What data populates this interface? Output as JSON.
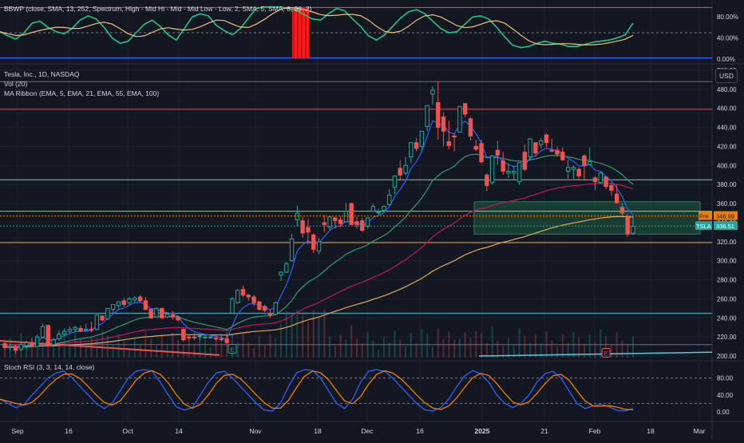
{
  "colors": {
    "background": "#131722",
    "up": "#26a69a",
    "down": "#ef5350",
    "grid": "#1f2330",
    "text": "#d1d4dc",
    "ema5": "#2962ff",
    "ema21": "#2e9e72",
    "ema55": "#c2185b",
    "ema100": "#e0a75e",
    "bbwp": "#26c281",
    "bbwp_ma": "#f6c177",
    "stoch_k": "#2962ff",
    "stoch_d": "#f57c00",
    "box": "#1d5b3f"
  },
  "bbwp_panel": {
    "title": "BBWP (close, SMA, 13, 252, Spectrum, High - Mid Hi - Mid - Mid Low - Low, 2, SMA, 5, SMA, 8, 98, 2)",
    "ticks": [
      "80.00%",
      "40.00%",
      "0.00%"
    ]
  },
  "price_panel": {
    "title": "Tesla, Inc., 1D, NASDAQ",
    "vol_label": "Vol (20)",
    "ribbon_label": "MA Ribbon (EMA, 5, EMA, 21, EMA, 55, EMA, 100)",
    "currency_button": "USD",
    "pre_tag": "Pre",
    "pre_value": "346.99",
    "symbol_tag": "TSLA",
    "last_value": "336.51",
    "earnings_icon": "E",
    "y_ticks": [
      "500.00",
      "480.00",
      "460.00",
      "440.00",
      "420.00",
      "400.00",
      "380.00",
      "360.00",
      "340.00",
      "320.00",
      "300.00",
      "280.00",
      "260.00",
      "240.00",
      "220.00",
      "200.00"
    ]
  },
  "stoch_panel": {
    "title": "Stoch RSI (3, 3, 14, 14, close)",
    "ticks": [
      "80.00",
      "40.00",
      "0.00"
    ]
  },
  "x_axis": {
    "labels": [
      "Sep",
      "16",
      "Oct",
      "14",
      "Nov",
      "18",
      "Dec",
      "16",
      "2025",
      "21",
      "Feb",
      "18",
      "Mar"
    ]
  },
  "chart_data": {
    "type": "candlestick",
    "title": "Tesla, Inc., 1D, NASDAQ",
    "ylim": [
      195,
      505
    ],
    "horizontal_levels": [
      {
        "value": 488,
        "color": "#787b86"
      },
      {
        "value": 459,
        "color": "#ef5350"
      },
      {
        "value": 385,
        "color": "#a5d6a7"
      },
      {
        "value": 352,
        "color": "#a5d6a7"
      },
      {
        "value": 319,
        "color": "#ffb74d"
      },
      {
        "value": 245,
        "color": "#4dd0e1"
      },
      {
        "value": 212,
        "color": "#787b86"
      }
    ],
    "zone": {
      "from": 328,
      "to": 362,
      "color": "#1d5b3f"
    },
    "pre_market": 346.99,
    "last": 336.51,
    "candles": [
      {
        "date": "Aug 26",
        "o": 213,
        "h": 215,
        "l": 207,
        "c": 209
      },
      {
        "date": "Aug 27",
        "o": 209,
        "h": 213,
        "l": 206,
        "c": 210
      },
      {
        "date": "Aug 28",
        "o": 210,
        "h": 212,
        "l": 203,
        "c": 206
      },
      {
        "date": "Aug 29",
        "o": 207,
        "h": 214,
        "l": 205,
        "c": 212
      },
      {
        "date": "Aug 30",
        "o": 211,
        "h": 216,
        "l": 208,
        "c": 214
      },
      {
        "date": "Sep 3",
        "o": 214,
        "h": 219,
        "l": 209,
        "c": 211
      },
      {
        "date": "Sep 4",
        "o": 210,
        "h": 222,
        "l": 210,
        "c": 220
      },
      {
        "date": "Sep 5",
        "o": 220,
        "h": 234,
        "l": 219,
        "c": 231
      },
      {
        "date": "Sep 6",
        "o": 232,
        "h": 233,
        "l": 210,
        "c": 211
      },
      {
        "date": "Sep 9",
        "o": 212,
        "h": 219,
        "l": 211,
        "c": 217
      },
      {
        "date": "Sep 10",
        "o": 218,
        "h": 227,
        "l": 216,
        "c": 223
      },
      {
        "date": "Sep 11",
        "o": 223,
        "h": 229,
        "l": 221,
        "c": 226
      },
      {
        "date": "Sep 12",
        "o": 226,
        "h": 231,
        "l": 224,
        "c": 228
      },
      {
        "date": "Sep 13",
        "o": 228,
        "h": 232,
        "l": 225,
        "c": 230
      },
      {
        "date": "Sep 16",
        "o": 229,
        "h": 232,
        "l": 226,
        "c": 226
      },
      {
        "date": "Sep 17",
        "o": 227,
        "h": 234,
        "l": 225,
        "c": 228
      },
      {
        "date": "Sep 18",
        "o": 228,
        "h": 236,
        "l": 225,
        "c": 227
      },
      {
        "date": "Sep 19",
        "o": 228,
        "h": 244,
        "l": 227,
        "c": 243
      },
      {
        "date": "Sep 20",
        "o": 242,
        "h": 243,
        "l": 236,
        "c": 238
      },
      {
        "date": "Sep 23",
        "o": 239,
        "h": 250,
        "l": 238,
        "c": 250
      },
      {
        "date": "Sep 24",
        "o": 249,
        "h": 254,
        "l": 244,
        "c": 254
      },
      {
        "date": "Sep 25",
        "o": 253,
        "h": 257,
        "l": 249,
        "c": 257
      },
      {
        "date": "Sep 26",
        "o": 258,
        "h": 261,
        "l": 252,
        "c": 254
      },
      {
        "date": "Sep 27",
        "o": 256,
        "h": 262,
        "l": 254,
        "c": 260
      },
      {
        "date": "Sep 30",
        "o": 259,
        "h": 263,
        "l": 256,
        "c": 261
      },
      {
        "date": "Oct 1",
        "o": 262,
        "h": 264,
        "l": 256,
        "c": 258
      },
      {
        "date": "Oct 2",
        "o": 258,
        "h": 262,
        "l": 248,
        "c": 249
      },
      {
        "date": "Oct 3",
        "o": 249,
        "h": 250,
        "l": 239,
        "c": 240
      },
      {
        "date": "Oct 4",
        "o": 241,
        "h": 251,
        "l": 240,
        "c": 250
      },
      {
        "date": "Oct 7",
        "o": 250,
        "h": 250,
        "l": 239,
        "c": 240
      },
      {
        "date": "Oct 8",
        "o": 241,
        "h": 246,
        "l": 240,
        "c": 244
      },
      {
        "date": "Oct 9",
        "o": 243,
        "h": 247,
        "l": 238,
        "c": 241
      },
      {
        "date": "Oct 10",
        "o": 241,
        "h": 242,
        "l": 236,
        "c": 238
      },
      {
        "date": "Oct 11",
        "o": 228,
        "h": 229,
        "l": 215,
        "c": 217
      },
      {
        "date": "Oct 14",
        "o": 220,
        "h": 222,
        "l": 217,
        "c": 219
      },
      {
        "date": "Oct 15",
        "o": 220,
        "h": 224,
        "l": 217,
        "c": 219
      },
      {
        "date": "Oct 16",
        "o": 221,
        "h": 222,
        "l": 217,
        "c": 221
      },
      {
        "date": "Oct 17",
        "o": 220,
        "h": 222,
        "l": 218,
        "c": 220
      },
      {
        "date": "Oct 18",
        "o": 220,
        "h": 222,
        "l": 218,
        "c": 220
      },
      {
        "date": "Oct 21",
        "o": 219,
        "h": 220,
        "l": 216,
        "c": 218
      },
      {
        "date": "Oct 22",
        "o": 218,
        "h": 223,
        "l": 215,
        "c": 217
      },
      {
        "date": "Oct 23",
        "o": 218,
        "h": 223,
        "l": 212,
        "c": 214
      },
      {
        "date": "Oct 24",
        "o": 245,
        "h": 262,
        "l": 244,
        "c": 260
      },
      {
        "date": "Oct 25",
        "o": 256,
        "h": 270,
        "l": 255,
        "c": 269
      },
      {
        "date": "Oct 28",
        "o": 270,
        "h": 274,
        "l": 262,
        "c": 264
      },
      {
        "date": "Oct 29",
        "o": 264,
        "h": 265,
        "l": 258,
        "c": 262
      },
      {
        "date": "Oct 30",
        "o": 262,
        "h": 264,
        "l": 253,
        "c": 256
      },
      {
        "date": "Oct 31",
        "o": 257,
        "h": 258,
        "l": 248,
        "c": 249
      },
      {
        "date": "Nov 1",
        "o": 252,
        "h": 254,
        "l": 246,
        "c": 248
      },
      {
        "date": "Nov 4",
        "o": 244,
        "h": 248,
        "l": 240,
        "c": 243
      },
      {
        "date": "Nov 5",
        "o": 244,
        "h": 257,
        "l": 243,
        "c": 256
      },
      {
        "date": "Nov 6",
        "o": 285,
        "h": 289,
        "l": 279,
        "c": 288
      },
      {
        "date": "Nov 7",
        "o": 288,
        "h": 299,
        "l": 287,
        "c": 297
      },
      {
        "date": "Nov 8",
        "o": 300,
        "h": 328,
        "l": 299,
        "c": 323
      },
      {
        "date": "Nov 11",
        "o": 343,
        "h": 358,
        "l": 336,
        "c": 350
      },
      {
        "date": "Nov 12",
        "o": 342,
        "h": 346,
        "l": 324,
        "c": 329
      },
      {
        "date": "Nov 13",
        "o": 335,
        "h": 344,
        "l": 317,
        "c": 330
      },
      {
        "date": "Nov 14",
        "o": 327,
        "h": 329,
        "l": 308,
        "c": 312
      },
      {
        "date": "Nov 15",
        "o": 310,
        "h": 324,
        "l": 307,
        "c": 320
      },
      {
        "date": "Nov 18",
        "o": 340,
        "h": 348,
        "l": 330,
        "c": 338
      },
      {
        "date": "Nov 19",
        "o": 335,
        "h": 347,
        "l": 332,
        "c": 346
      },
      {
        "date": "Nov 20",
        "o": 345,
        "h": 346,
        "l": 334,
        "c": 342
      },
      {
        "date": "Nov 21",
        "o": 343,
        "h": 347,
        "l": 335,
        "c": 339
      },
      {
        "date": "Nov 22",
        "o": 341,
        "h": 361,
        "l": 340,
        "c": 352
      },
      {
        "date": "Nov 25",
        "o": 360,
        "h": 361,
        "l": 338,
        "c": 338
      },
      {
        "date": "Nov 26",
        "o": 341,
        "h": 346,
        "l": 334,
        "c": 338
      },
      {
        "date": "Nov 27",
        "o": 342,
        "h": 345,
        "l": 330,
        "c": 332
      },
      {
        "date": "Nov 29",
        "o": 336,
        "h": 345,
        "l": 334,
        "c": 345
      },
      {
        "date": "Dec 2",
        "o": 352,
        "h": 360,
        "l": 351,
        "c": 357
      },
      {
        "date": "Dec 3",
        "o": 351,
        "h": 355,
        "l": 348,
        "c": 351
      },
      {
        "date": "Dec 4",
        "o": 353,
        "h": 358,
        "l": 350,
        "c": 357
      },
      {
        "date": "Dec 5",
        "o": 359,
        "h": 375,
        "l": 358,
        "c": 369
      },
      {
        "date": "Dec 6",
        "o": 377,
        "h": 389,
        "l": 370,
        "c": 389
      },
      {
        "date": "Dec 9",
        "o": 397,
        "h": 405,
        "l": 385,
        "c": 390
      },
      {
        "date": "Dec 10",
        "o": 392,
        "h": 409,
        "l": 390,
        "c": 400
      },
      {
        "date": "Dec 11",
        "o": 409,
        "h": 424,
        "l": 402,
        "c": 424
      },
      {
        "date": "Dec 12",
        "o": 424,
        "h": 429,
        "l": 415,
        "c": 418
      },
      {
        "date": "Dec 13",
        "o": 420,
        "h": 436,
        "l": 415,
        "c": 436
      },
      {
        "date": "Dec 16",
        "o": 441,
        "h": 463,
        "l": 436,
        "c": 463
      },
      {
        "date": "Dec 17",
        "o": 475,
        "h": 483,
        "l": 464,
        "c": 479
      },
      {
        "date": "Dec 18",
        "o": 466,
        "h": 488,
        "l": 427,
        "c": 440
      },
      {
        "date": "Dec 19",
        "o": 451,
        "h": 456,
        "l": 420,
        "c": 436
      },
      {
        "date": "Dec 20",
        "o": 425,
        "h": 447,
        "l": 417,
        "c": 421
      },
      {
        "date": "Dec 23",
        "o": 431,
        "h": 434,
        "l": 415,
        "c": 430
      },
      {
        "date": "Dec 24",
        "o": 435,
        "h": 462,
        "l": 435,
        "c": 462
      },
      {
        "date": "Dec 26",
        "o": 465,
        "h": 465,
        "l": 451,
        "c": 454
      },
      {
        "date": "Dec 27",
        "o": 449,
        "h": 451,
        "l": 426,
        "c": 431
      },
      {
        "date": "Dec 30",
        "o": 420,
        "h": 427,
        "l": 415,
        "c": 417
      },
      {
        "date": "Dec 31",
        "o": 423,
        "h": 427,
        "l": 402,
        "c": 404
      },
      {
        "date": "Jan 2",
        "o": 390,
        "h": 392,
        "l": 373,
        "c": 379
      },
      {
        "date": "Jan 3",
        "o": 382,
        "h": 411,
        "l": 380,
        "c": 410
      },
      {
        "date": "Jan 6",
        "o": 416,
        "h": 426,
        "l": 401,
        "c": 411
      },
      {
        "date": "Jan 7",
        "o": 405,
        "h": 414,
        "l": 390,
        "c": 394
      },
      {
        "date": "Jan 8",
        "o": 392,
        "h": 402,
        "l": 387,
        "c": 394
      },
      {
        "date": "Jan 10",
        "o": 392,
        "h": 400,
        "l": 385,
        "c": 394
      },
      {
        "date": "Jan 13",
        "o": 383,
        "h": 403,
        "l": 380,
        "c": 403
      },
      {
        "date": "Jan 14",
        "o": 414,
        "h": 422,
        "l": 394,
        "c": 396
      },
      {
        "date": "Jan 15",
        "o": 409,
        "h": 429,
        "l": 405,
        "c": 428
      },
      {
        "date": "Jan 16",
        "o": 424,
        "h": 424,
        "l": 409,
        "c": 413
      },
      {
        "date": "Jan 17",
        "o": 422,
        "h": 429,
        "l": 418,
        "c": 426
      },
      {
        "date": "Jan 21",
        "o": 432,
        "h": 434,
        "l": 419,
        "c": 424
      },
      {
        "date": "Jan 22",
        "o": 416,
        "h": 428,
        "l": 414,
        "c": 415
      },
      {
        "date": "Jan 23",
        "o": 416,
        "h": 420,
        "l": 409,
        "c": 412
      },
      {
        "date": "Jan 24",
        "o": 414,
        "h": 419,
        "l": 405,
        "c": 406
      },
      {
        "date": "Jan 27",
        "o": 394,
        "h": 406,
        "l": 386,
        "c": 398
      },
      {
        "date": "Jan 28",
        "o": 396,
        "h": 400,
        "l": 386,
        "c": 398
      },
      {
        "date": "Jan 29",
        "o": 396,
        "h": 398,
        "l": 384,
        "c": 389
      },
      {
        "date": "Jan 30",
        "o": 410,
        "h": 412,
        "l": 384,
        "c": 400
      },
      {
        "date": "Jan 31",
        "o": 401,
        "h": 419,
        "l": 401,
        "c": 404
      },
      {
        "date": "Feb 3",
        "o": 387,
        "h": 389,
        "l": 374,
        "c": 383
      },
      {
        "date": "Feb 4",
        "o": 382,
        "h": 394,
        "l": 381,
        "c": 392
      },
      {
        "date": "Feb 5",
        "o": 388,
        "h": 388,
        "l": 375,
        "c": 378
      },
      {
        "date": "Feb 6",
        "o": 379,
        "h": 382,
        "l": 368,
        "c": 374
      },
      {
        "date": "Feb 7",
        "o": 370,
        "h": 380,
        "l": 360,
        "c": 361
      },
      {
        "date": "Feb 10",
        "o": 356,
        "h": 360,
        "l": 347,
        "c": 350
      },
      {
        "date": "Feb 11",
        "o": 345,
        "h": 349,
        "l": 325,
        "c": 328
      },
      {
        "date": "Feb 12",
        "o": 329,
        "h": 346,
        "l": 327,
        "c": 336
      }
    ]
  }
}
